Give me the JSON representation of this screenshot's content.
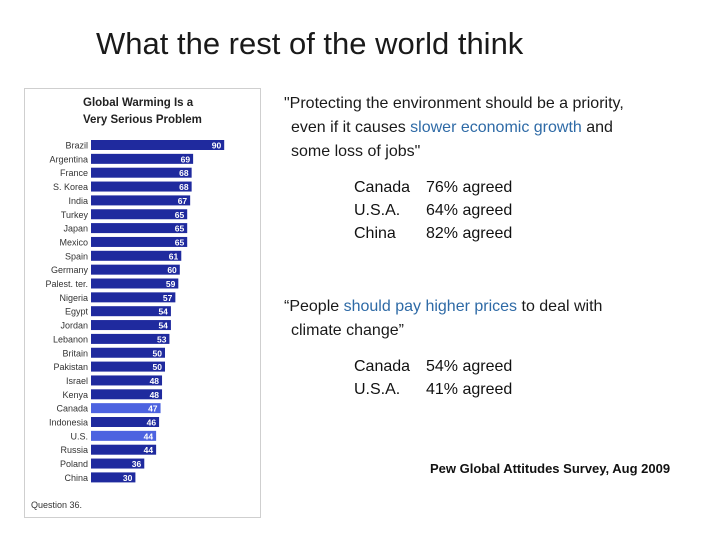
{
  "slide": {
    "title": "What the rest of the world think",
    "source": "Pew Global Attitudes Survey, Aug 2009"
  },
  "quote1": {
    "open": "\"Protecting the environment should be a priority,",
    "line2_prefix": "even if it causes ",
    "line2_highlight": "slower economic growth",
    "line2_suffix": " and",
    "line3": "some loss of jobs\""
  },
  "stats1": [
    {
      "country": "Canada",
      "value": "76% agreed"
    },
    {
      "country": "U.S.A.",
      "value": "64% agreed"
    },
    {
      "country": "China",
      "value": "82% agreed"
    }
  ],
  "quote2": {
    "open": "“People ",
    "hl1": "should pay",
    "mid": " ",
    "hl2": "higher prices",
    "tail": " to deal with",
    "line2": "climate change”"
  },
  "stats2": [
    {
      "country": "Canada",
      "value": "54% agreed"
    },
    {
      "country": "U.S.A.",
      "value": "41% agreed"
    }
  ],
  "colors": {
    "bar": "#1f2a9e",
    "bar_highlight": "#4d63e0",
    "text_highlight": "#2e6aa6"
  },
  "chart_data": {
    "type": "bar",
    "orientation": "horizontal",
    "title": [
      "Global Warming Is a",
      "Very Serious Problem"
    ],
    "footnote": "Question 36.",
    "categories": [
      "Brazil",
      "Argentina",
      "France",
      "S. Korea",
      "India",
      "Turkey",
      "Japan",
      "Mexico",
      "Spain",
      "Germany",
      "Palest. ter.",
      "Nigeria",
      "Egypt",
      "Jordan",
      "Lebanon",
      "Britain",
      "Pakistan",
      "Israel",
      "Kenya",
      "Canada",
      "Indonesia",
      "U.S.",
      "Russia",
      "Poland",
      "China"
    ],
    "values": [
      90,
      69,
      68,
      68,
      67,
      65,
      65,
      65,
      61,
      60,
      59,
      57,
      54,
      54,
      53,
      50,
      50,
      48,
      48,
      47,
      46,
      44,
      44,
      36,
      30
    ],
    "highlighted": [
      "Canada",
      "U.S."
    ],
    "xlim": [
      0,
      100
    ]
  }
}
